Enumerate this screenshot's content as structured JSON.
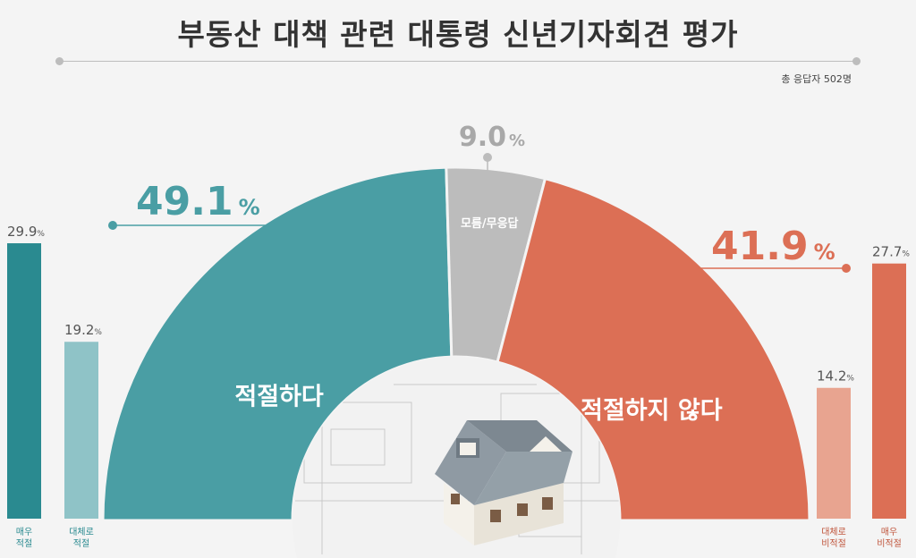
{
  "title": "부동산 대책 관련 대통령 신년기자회견 평가",
  "respondents": "총 응답자 502명",
  "colors": {
    "teal": "#4a9ea4",
    "teal_dark": "#2a8a90",
    "teal_light": "#8fc3c7",
    "gray": "#bcbcbc",
    "orange": "#dc6f55",
    "orange_light": "#e8a490"
  },
  "chart_data": [
    {
      "type": "pie",
      "shape": "half-donut",
      "slices": [
        {
          "label": "적절하다",
          "value": 49.1,
          "display": "49.1",
          "color": "#4a9ea4"
        },
        {
          "label": "모름/무응답",
          "value": 9.0,
          "display": "9.0",
          "color": "#bcbcbc"
        },
        {
          "label": "적절하지 않다",
          "value": 41.9,
          "display": "41.9",
          "color": "#dc6f55"
        }
      ],
      "unit": "%"
    },
    {
      "type": "bar",
      "categories": [
        "매우\n적절",
        "대체로\n적절",
        "대체로\n비적절",
        "매우\n비적절"
      ],
      "bars": [
        {
          "label_lines": [
            "매우",
            "적절"
          ],
          "value": 29.9,
          "display": "29.9",
          "color": "#2a8a90",
          "label_color": "#2a8a90"
        },
        {
          "label_lines": [
            "대체로",
            "적절"
          ],
          "value": 19.2,
          "display": "19.2",
          "color": "#8fc3c7",
          "label_color": "#2a8a90"
        },
        {
          "label_lines": [
            "대체로",
            "비적절"
          ],
          "value": 14.2,
          "display": "14.2",
          "color": "#e8a490",
          "label_color": "#c0563d"
        },
        {
          "label_lines": [
            "매우",
            "비적절"
          ],
          "value": 27.7,
          "display": "27.7",
          "color": "#dc6f55",
          "label_color": "#c0563d"
        }
      ],
      "unit": "%"
    }
  ],
  "icons": [
    "house-icon",
    "blueprint-background"
  ]
}
